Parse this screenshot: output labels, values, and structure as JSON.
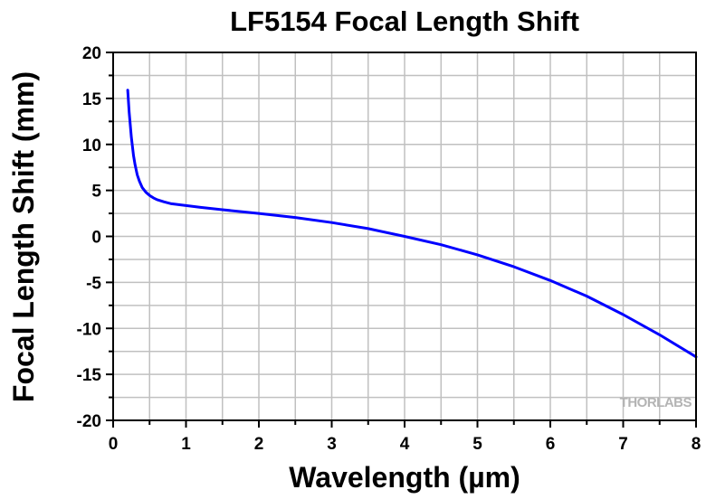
{
  "chart_data": {
    "type": "line",
    "title": "LF5154 Focal Length Shift",
    "xlabel": "Wavelength (µm)",
    "ylabel": "Focal Length Shift (mm)",
    "xlim": [
      0,
      8
    ],
    "ylim": [
      -20,
      20
    ],
    "x_ticks": [
      "0",
      "1",
      "2",
      "3",
      "4",
      "5",
      "6",
      "7",
      "8"
    ],
    "y_ticks": [
      "20",
      "15",
      "10",
      "5",
      "0",
      "-5",
      "-10",
      "-15",
      "-20"
    ],
    "grid": true,
    "series": [
      {
        "color": "#0000ff",
        "x": [
          0.2,
          0.22,
          0.25,
          0.28,
          0.3,
          0.33,
          0.36,
          0.4,
          0.45,
          0.5,
          0.55,
          0.6,
          0.7,
          0.8,
          1.0,
          1.2,
          1.5,
          2.0,
          2.5,
          3.0,
          3.5,
          4.0,
          4.5,
          5.0,
          5.5,
          6.0,
          6.5,
          7.0,
          7.5,
          8.0
        ],
        "y": [
          15.9,
          13.5,
          10.8,
          8.8,
          7.8,
          6.7,
          6.0,
          5.3,
          4.8,
          4.45,
          4.2,
          4.0,
          3.75,
          3.55,
          3.35,
          3.15,
          2.9,
          2.5,
          2.05,
          1.5,
          0.85,
          0.0,
          -0.9,
          -2.0,
          -3.3,
          -4.8,
          -6.5,
          -8.5,
          -10.7,
          -13.1
        ]
      }
    ],
    "line_color": "#0000ff",
    "grid_color": "#c0c0c0"
  },
  "watermark": {
    "text": "THORLABS"
  }
}
